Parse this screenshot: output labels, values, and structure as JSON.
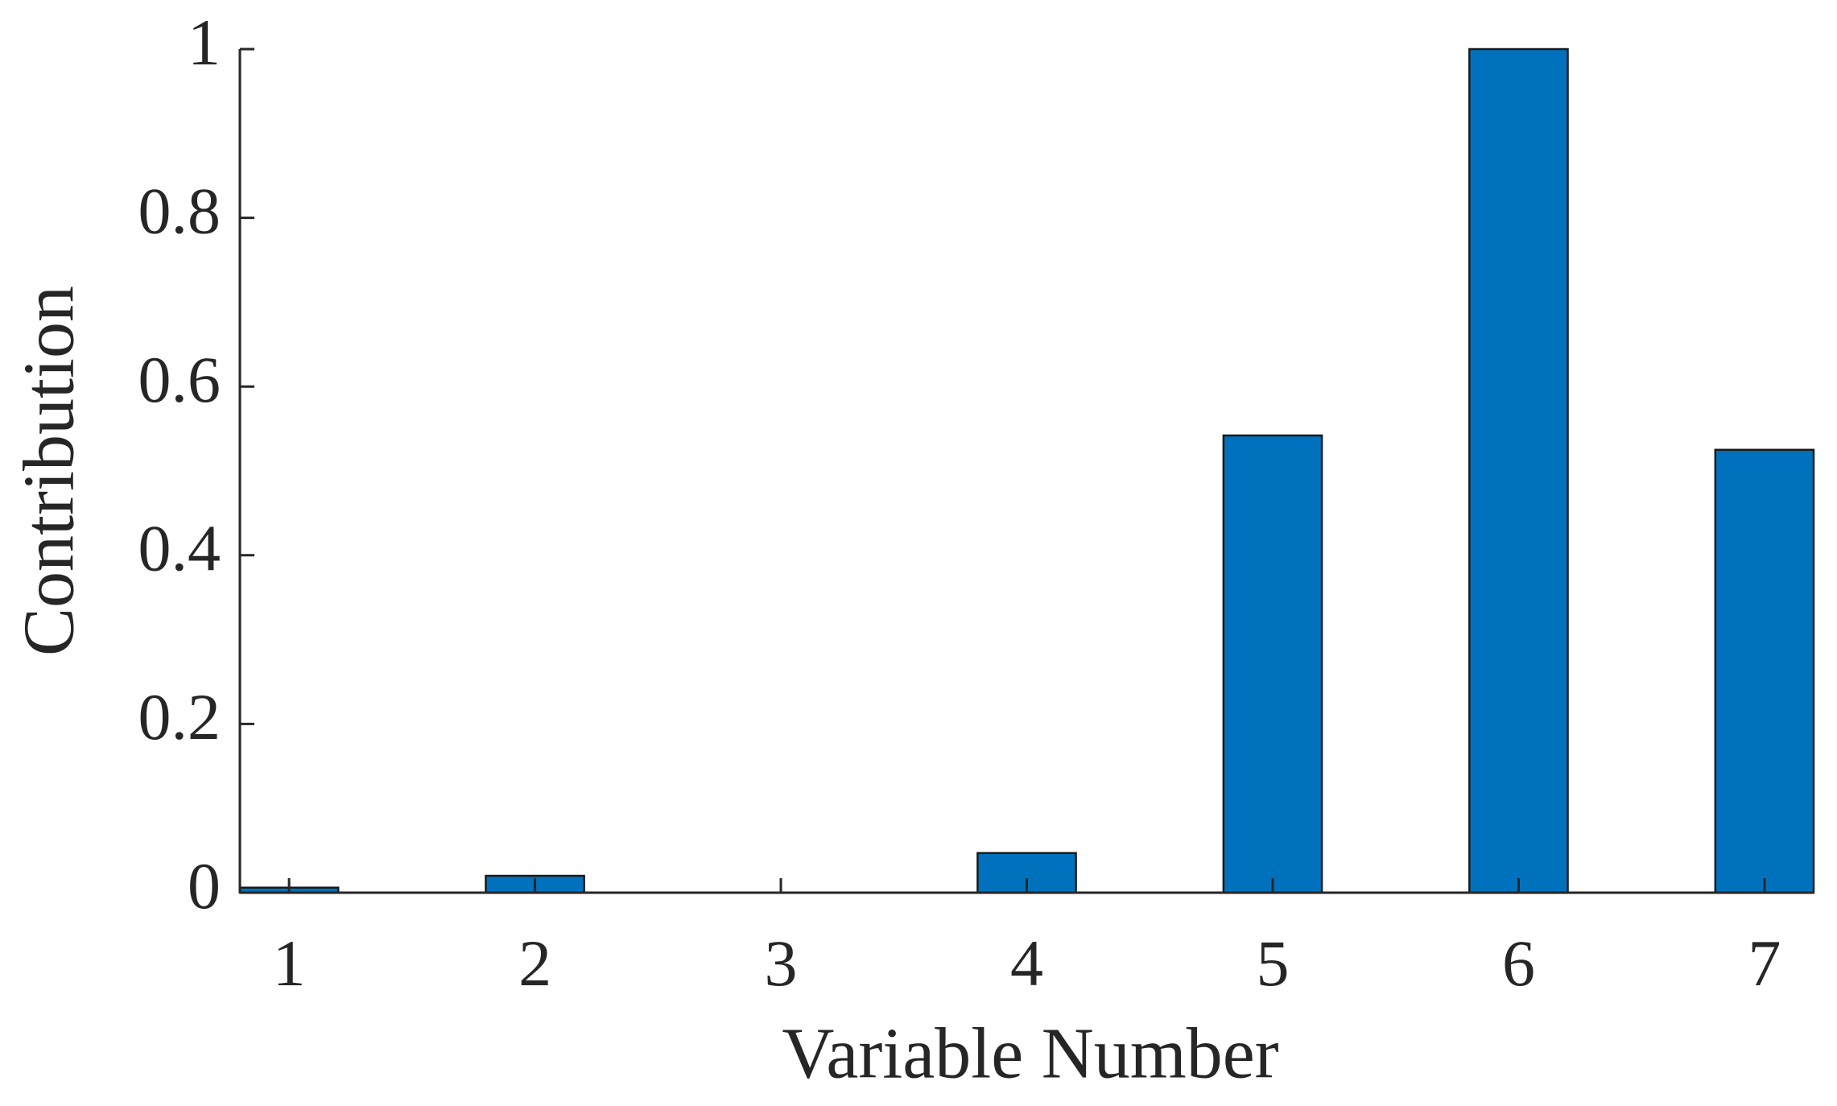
{
  "chart_data": {
    "type": "bar",
    "x_label": "Variable Number",
    "y_label": "Contribution",
    "x": [
      1,
      2,
      3,
      4,
      5,
      6,
      7
    ],
    "values": [
      0.006,
      0.02,
      0,
      0.047,
      0.542,
      1,
      0.525
    ],
    "color": "#0072bd",
    "xlim": [
      0.8,
      7.2
    ],
    "xticks": [
      1,
      2,
      3,
      4,
      5,
      6,
      7
    ],
    "ylim": [
      0,
      1
    ],
    "yticks": [
      0,
      0.2,
      0.4,
      0.6,
      0.8,
      1
    ],
    "grid": false
  }
}
